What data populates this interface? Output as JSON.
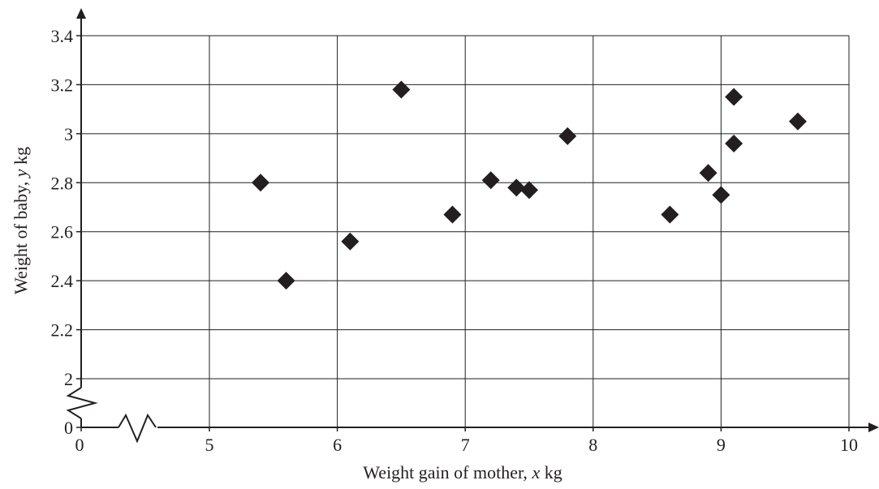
{
  "chart_data": {
    "type": "scatter",
    "xlabel": {
      "prefix": "Weight gain of mother, ",
      "var": "x",
      "unit": " kg"
    },
    "ylabel": {
      "prefix": "Weight of baby, ",
      "var": "y",
      "unit": " kg"
    },
    "x_ticks": [
      5,
      6,
      7,
      8,
      9,
      10
    ],
    "x_tick_labels": [
      "5",
      "6",
      "7",
      "8",
      "9",
      "10"
    ],
    "x_origin_label": "0",
    "y_ticks": [
      2,
      2.2,
      2.4,
      2.6,
      2.8,
      3,
      3.2,
      3.4
    ],
    "y_tick_labels": [
      "2",
      "2.2",
      "2.4",
      "2.6",
      "2.8",
      "3",
      "3.2",
      "3.4"
    ],
    "y_origin_label": "0",
    "xlim": [
      4,
      10
    ],
    "ylim": [
      2,
      3.4
    ],
    "axis_breaks": {
      "x": true,
      "y": true
    },
    "grid": true,
    "marker": "diamond",
    "color": "#231f20",
    "points": [
      {
        "x": 5.4,
        "y": 2.8
      },
      {
        "x": 5.6,
        "y": 2.4
      },
      {
        "x": 6.1,
        "y": 2.56
      },
      {
        "x": 6.5,
        "y": 3.18
      },
      {
        "x": 6.9,
        "y": 2.67
      },
      {
        "x": 7.2,
        "y": 2.81
      },
      {
        "x": 7.4,
        "y": 2.78
      },
      {
        "x": 7.5,
        "y": 2.77
      },
      {
        "x": 7.8,
        "y": 2.99
      },
      {
        "x": 8.6,
        "y": 2.67
      },
      {
        "x": 8.9,
        "y": 2.84
      },
      {
        "x": 9.0,
        "y": 2.75
      },
      {
        "x": 9.1,
        "y": 3.15
      },
      {
        "x": 9.1,
        "y": 2.96
      },
      {
        "x": 9.6,
        "y": 3.05
      }
    ]
  }
}
